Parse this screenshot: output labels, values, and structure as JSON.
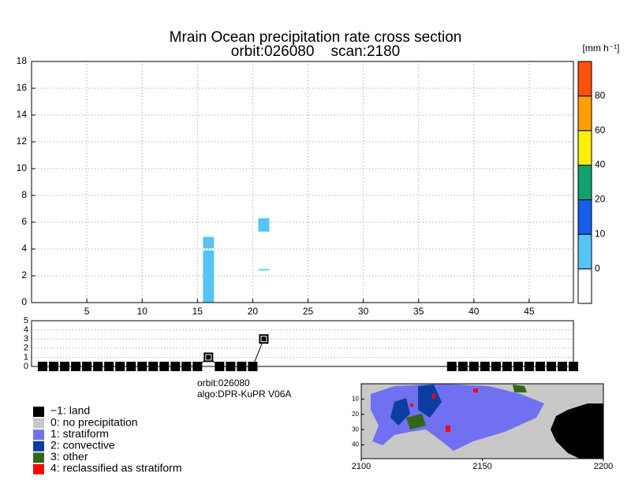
{
  "chart_data": [
    {
      "type": "cells",
      "title": "Mrain Ocean precipitation rate cross section",
      "subtitle": "orbit:026080    scan:2180",
      "xlim": [
        0,
        49
      ],
      "xticks": [
        5,
        10,
        15,
        20,
        25,
        30,
        35,
        40,
        45
      ],
      "ylim": [
        0,
        18
      ],
      "yticks": [
        0,
        2,
        4,
        6,
        8,
        10,
        12,
        14,
        16,
        18
      ],
      "grid": true,
      "color": "#55c5f5",
      "cells": [
        {
          "x": 16,
          "y0": 0,
          "y1": 3.9
        },
        {
          "x": 16,
          "y0": 4.05,
          "y1": 4.9
        },
        {
          "x": 21,
          "y0": 5.3,
          "y1": 6.3
        },
        {
          "x": 21,
          "y0": 2.4,
          "y1": 2.5
        }
      ],
      "colorbar": {
        "label": "[mm h⁻¹]",
        "ticks": [
          0,
          10,
          20,
          40,
          60,
          80
        ],
        "colors": [
          "#ffffff",
          "#55c5f5",
          "#1560e8",
          "#13a070",
          "#ffee00",
          "#ffa000",
          "#ff5010"
        ]
      }
    },
    {
      "type": "line",
      "xlim": [
        0,
        49
      ],
      "ylim": [
        0,
        5
      ],
      "yticks": [
        0,
        1,
        2,
        3,
        4,
        5
      ],
      "grid": true,
      "color": "#000000",
      "x": [
        1,
        2,
        3,
        4,
        5,
        6,
        7,
        8,
        9,
        10,
        11,
        12,
        13,
        14,
        15,
        16,
        17,
        18,
        19,
        20,
        21,
        22,
        23,
        24,
        25,
        26,
        27,
        28,
        29,
        30,
        31,
        32,
        33,
        34,
        35,
        36,
        37,
        38,
        39,
        40,
        41,
        42,
        43,
        44,
        45,
        46,
        47,
        48,
        49
      ],
      "values": [
        0,
        0,
        0,
        0,
        0,
        0,
        0,
        0,
        0,
        0,
        0,
        0,
        0,
        0,
        0,
        1,
        0,
        0,
        0,
        0,
        3,
        null,
        null,
        null,
        null,
        null,
        null,
        null,
        null,
        null,
        null,
        null,
        null,
        null,
        null,
        null,
        null,
        0,
        0,
        0,
        0,
        0,
        0,
        0,
        0,
        0,
        0,
        0,
        0
      ]
    },
    {
      "type": "map",
      "orbit": "orbit:026080",
      "algo": "algo:DPR-KuPR V06A",
      "xlim": [
        2100,
        2200
      ],
      "xticks": [
        2100,
        2150,
        2200
      ],
      "ylim": [
        0,
        49
      ],
      "yticks": [
        10,
        20,
        30,
        40
      ],
      "legend": [
        {
          "label": "−1: land",
          "color": "#000000"
        },
        {
          "label": "0: no precipitation",
          "color": "#c8c8c8"
        },
        {
          "label": "1: stratiform",
          "color": "#7070f0"
        },
        {
          "label": "2: convective",
          "color": "#0b3ea0"
        },
        {
          "label": "3: other",
          "color": "#336619"
        },
        {
          "label": "4: reclassified as stratiform",
          "color": "#ff0000"
        }
      ]
    }
  ]
}
